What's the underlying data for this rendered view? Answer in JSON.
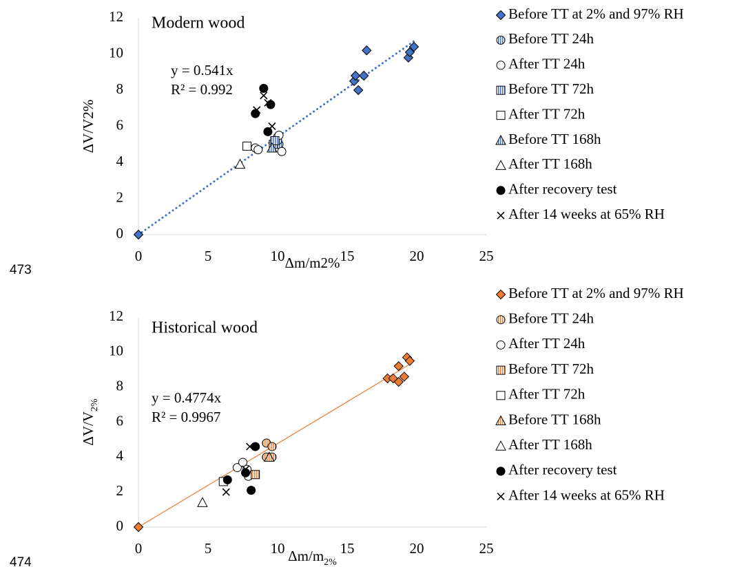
{
  "line_numbers": [
    "473",
    "474"
  ],
  "chart_data": [
    {
      "type": "scatter",
      "title": "Modern wood",
      "annotations": [
        "y = 0.541x",
        "R² = 0.992"
      ],
      "x_label": "Δm/m2%",
      "y_label": "ΔV/V2%",
      "xlim": [
        0,
        25
      ],
      "ylim": [
        0,
        12
      ],
      "xticks": [
        0,
        5,
        10,
        15,
        20,
        25
      ],
      "yticks": [
        0,
        2,
        4,
        6,
        8,
        10,
        12
      ],
      "trendline": {
        "slope": 0.541,
        "color": "#4472c4",
        "style": "dotted"
      },
      "series": [
        {
          "name": "Before TT at 2% and 97% RH",
          "color": "#4472c4",
          "marker": "diamond",
          "fill": "solid",
          "x": [
            0,
            15.5,
            15.6,
            15.8,
            16.2,
            16.4,
            19.4,
            19.5,
            19.8
          ],
          "values": [
            0,
            8.5,
            8.8,
            8.0,
            8.8,
            10.2,
            9.8,
            10.1,
            10.4
          ]
        },
        {
          "name": "Before TT 24h",
          "color": "#4472c4",
          "marker": "circle",
          "fill": "striped",
          "x": [
            10.0,
            10.1,
            10.0
          ],
          "values": [
            5.4,
            5.0,
            5.2
          ]
        },
        {
          "name": "After TT 24h",
          "color": "#000000",
          "marker": "circle",
          "fill": "none",
          "x": [
            8.4,
            8.6,
            10.3,
            10.1
          ],
          "values": [
            4.8,
            4.7,
            4.6,
            5.5
          ]
        },
        {
          "name": "Before TT 72h",
          "color": "#4472c4",
          "marker": "square",
          "fill": "striped",
          "x": [
            9.7,
            9.8
          ],
          "values": [
            5.0,
            5.2
          ]
        },
        {
          "name": "After TT 72h",
          "color": "#000000",
          "marker": "square",
          "fill": "none",
          "x": [
            7.8
          ],
          "values": [
            4.9
          ]
        },
        {
          "name": "Before TT 168h",
          "color": "#4472c4",
          "marker": "triangle",
          "fill": "striped",
          "x": [
            9.6
          ],
          "values": [
            4.8
          ]
        },
        {
          "name": "After TT 168h",
          "color": "#000000",
          "marker": "triangle",
          "fill": "none",
          "x": [
            7.3
          ],
          "values": [
            3.9
          ]
        },
        {
          "name": "After recovery test",
          "color": "#000000",
          "marker": "circle",
          "fill": "solid",
          "x": [
            8.4,
            9.0,
            9.3,
            9.5
          ],
          "values": [
            6.7,
            8.1,
            5.7,
            7.2
          ]
        },
        {
          "name": "After 14 weeks at 65% RH",
          "color": "#000000",
          "marker": "x",
          "fill": "solid",
          "x": [
            8.5,
            9.0,
            9.3,
            9.6
          ],
          "values": [
            6.9,
            7.7,
            7.3,
            6.0
          ]
        }
      ]
    },
    {
      "type": "scatter",
      "title": "Historical wood",
      "annotations": [
        "y = 0.4774x",
        "R² = 0.9967"
      ],
      "x_label": "Δm/m",
      "x_label_sub": "2%",
      "y_label": "ΔV/V",
      "y_label_sub": "2%",
      "xlim": [
        0,
        25
      ],
      "ylim": [
        0,
        12
      ],
      "xticks": [
        0,
        5,
        10,
        15,
        20,
        25
      ],
      "yticks": [
        0,
        2,
        4,
        6,
        8,
        10,
        12
      ],
      "trendline": {
        "slope": 0.4774,
        "color": "#ed7d31",
        "style": "solid"
      },
      "series": [
        {
          "name": "Before TT at 2% and 97% RH",
          "color": "#ed7d31",
          "marker": "diamond",
          "fill": "solid",
          "x": [
            0,
            17.9,
            18.3,
            18.7,
            18.7,
            19.1,
            19.3,
            19.5
          ],
          "values": [
            0,
            8.5,
            8.5,
            8.3,
            9.2,
            8.6,
            9.7,
            9.5
          ]
        },
        {
          "name": "Before TT 24h",
          "color": "#ed7d31",
          "marker": "circle",
          "fill": "striped",
          "x": [
            9.2,
            9.6,
            9.6,
            9.2
          ],
          "values": [
            4.8,
            4.6,
            4.0,
            4.0
          ]
        },
        {
          "name": "After TT 24h",
          "color": "#000000",
          "marker": "circle",
          "fill": "none",
          "x": [
            7.1,
            7.5,
            7.8,
            7.9
          ],
          "values": [
            3.4,
            3.7,
            3.3,
            2.9
          ]
        },
        {
          "name": "Before TT 72h",
          "color": "#ed7d31",
          "marker": "square",
          "fill": "striped",
          "x": [
            8.4
          ],
          "values": [
            3.0
          ]
        },
        {
          "name": "After TT 72h",
          "color": "#000000",
          "marker": "square",
          "fill": "none",
          "x": [
            6.1
          ],
          "values": [
            2.6
          ]
        },
        {
          "name": "Before TT 168h",
          "color": "#ed7d31",
          "marker": "triangle",
          "fill": "striped",
          "x": [
            9.4
          ],
          "values": [
            4.0
          ]
        },
        {
          "name": "After TT 168h",
          "color": "#000000",
          "marker": "triangle",
          "fill": "none",
          "x": [
            4.6
          ],
          "values": [
            1.4
          ]
        },
        {
          "name": "After recovery test",
          "color": "#000000",
          "marker": "circle",
          "fill": "solid",
          "x": [
            6.4,
            7.7,
            8.1,
            8.4
          ],
          "values": [
            2.7,
            3.1,
            2.1,
            4.6
          ]
        },
        {
          "name": "After 14 weeks at 65% RH",
          "color": "#000000",
          "marker": "x",
          "fill": "solid",
          "x": [
            6.3,
            8.0,
            7.7
          ],
          "values": [
            2.0,
            4.6,
            3.3
          ]
        }
      ]
    }
  ]
}
